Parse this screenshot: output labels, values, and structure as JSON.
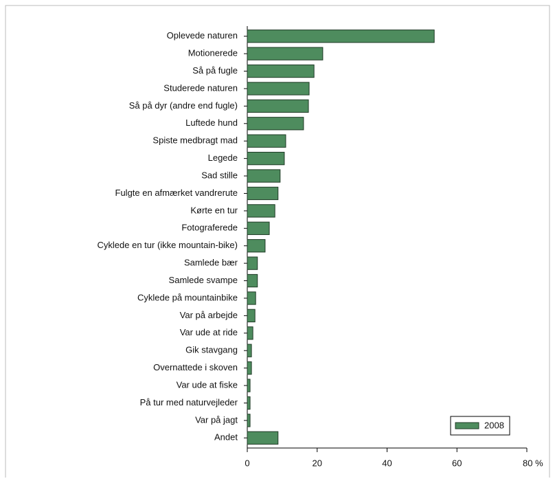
{
  "chart_data": {
    "type": "bar",
    "orientation": "horizontal",
    "categories": [
      "Oplevede naturen",
      "Motionerede",
      "Så på fugle",
      "Studerede naturen",
      "Så på dyr (andre end fugle)",
      "Luftede hund",
      "Spiste medbragt mad",
      "Legede",
      "Sad stille",
      "Fulgte en afmærket vandrerute",
      "Kørte en tur",
      "Fotograferede",
      "Cyklede en tur (ikke mountain-bike)",
      "Samlede bær",
      "Samlede svampe",
      "Cyklede på mountainbike",
      "Var på arbejde",
      "Var ude at ride",
      "Gik stavgang",
      "Overnattede i skoven",
      "Var ude at fiske",
      "På tur med naturvejleder",
      "Var på jagt",
      "Andet"
    ],
    "series": [
      {
        "name": "2008",
        "color": "#4e8c5e",
        "values": [
          53.5,
          21.6,
          19.1,
          17.7,
          17.5,
          16.1,
          11.0,
          10.6,
          9.4,
          8.8,
          7.9,
          6.3,
          5.1,
          2.9,
          2.9,
          2.4,
          2.2,
          1.6,
          1.2,
          1.2,
          0.8,
          0.8,
          0.8,
          8.8
        ]
      }
    ],
    "xlim": [
      0,
      80
    ],
    "xticks": [
      0,
      20,
      40,
      60,
      {
        "value": 80,
        "label": "80 %"
      }
    ],
    "legend": "bottom-right"
  }
}
